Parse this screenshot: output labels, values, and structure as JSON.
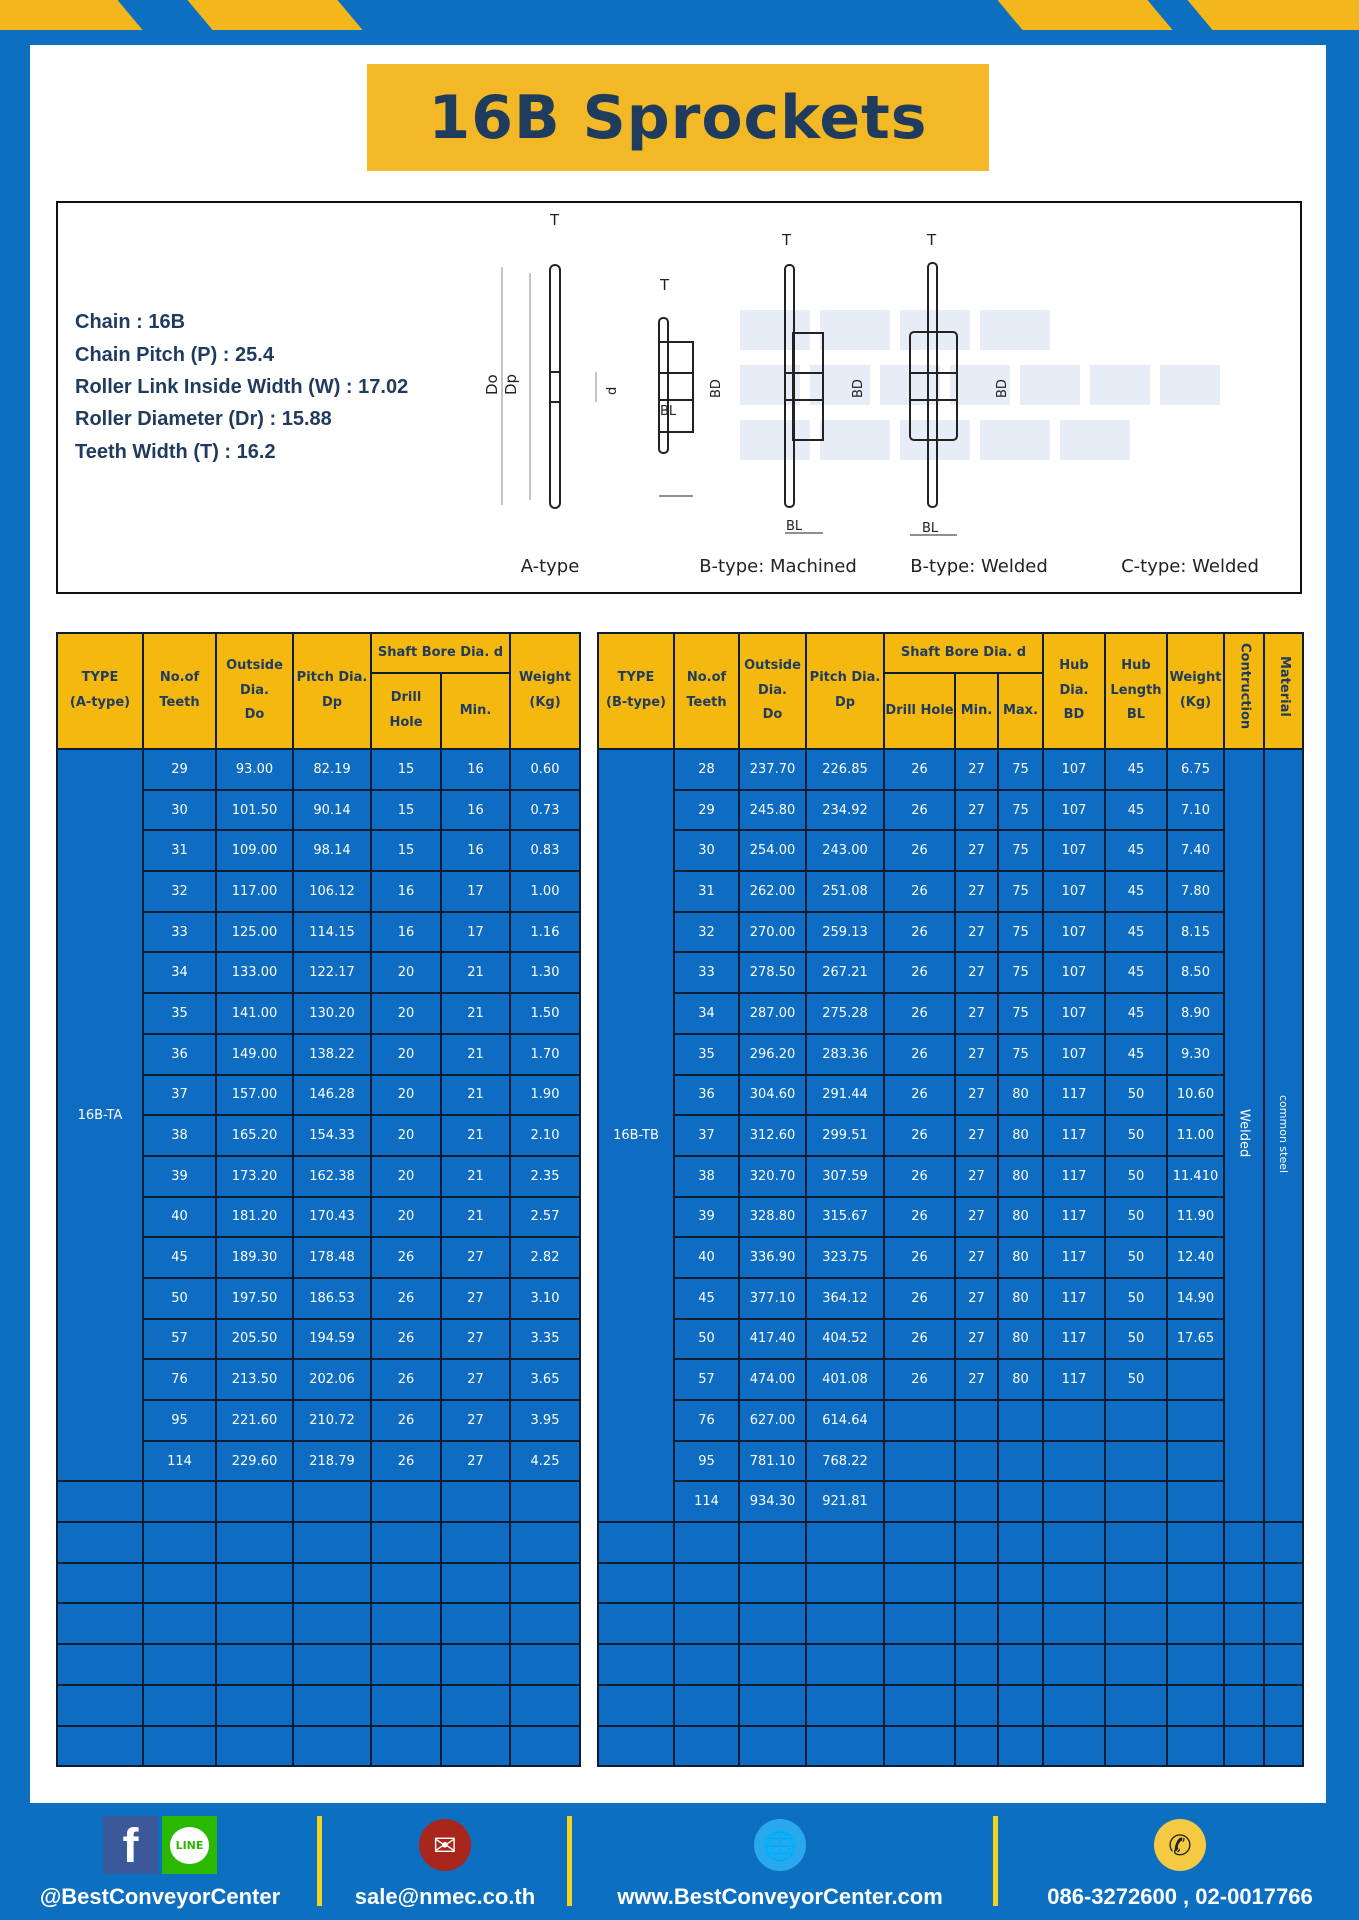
{
  "title": "16B Sprockets",
  "specs": [
    {
      "label": "Chain",
      "value": "16B"
    },
    {
      "label": "Chain Pitch (P)",
      "value": "25.4"
    },
    {
      "label": "Roller Link Inside Width (W)",
      "value": "17.02"
    },
    {
      "label": "Roller Diameter (Dr)",
      "value": "15.88"
    },
    {
      "label": "Teeth Width (T)",
      "value": "16.2"
    }
  ],
  "diagram": {
    "watermark": "BEST CONVEYOR CENTER",
    "labels": {
      "T": "T",
      "Do": "Do",
      "Dp": "Dp",
      "d": "d",
      "BD": "BD",
      "BL": "BL"
    },
    "types": [
      "A-type",
      "B-type: Machined",
      "B-type: Welded",
      "C-type: Welded"
    ]
  },
  "table_a": {
    "headers": {
      "type": "TYPE",
      "type_sub": "(A-type)",
      "teeth": "No.of",
      "teeth_sub": "Teeth",
      "do": "Outside",
      "do_sub": "Dia.",
      "do_sub2": "Do",
      "dp": "Pitch Dia.",
      "dp_sub": "Dp",
      "bore": "Shaft Bore Dia. d",
      "drill": "Drill Hole",
      "min": "Min.",
      "weight": "Weight",
      "weight_sub": "(Kg)"
    },
    "type_value": "16B-TA",
    "rows": [
      [
        "29",
        "93.00",
        "82.19",
        "15",
        "16",
        "0.60"
      ],
      [
        "30",
        "101.50",
        "90.14",
        "15",
        "16",
        "0.73"
      ],
      [
        "31",
        "109.00",
        "98.14",
        "15",
        "16",
        "0.83"
      ],
      [
        "32",
        "117.00",
        "106.12",
        "16",
        "17",
        "1.00"
      ],
      [
        "33",
        "125.00",
        "114.15",
        "16",
        "17",
        "1.16"
      ],
      [
        "34",
        "133.00",
        "122.17",
        "20",
        "21",
        "1.30"
      ],
      [
        "35",
        "141.00",
        "130.20",
        "20",
        "21",
        "1.50"
      ],
      [
        "36",
        "149.00",
        "138.22",
        "20",
        "21",
        "1.70"
      ],
      [
        "37",
        "157.00",
        "146.28",
        "20",
        "21",
        "1.90"
      ],
      [
        "38",
        "165.20",
        "154.33",
        "20",
        "21",
        "2.10"
      ],
      [
        "39",
        "173.20",
        "162.38",
        "20",
        "21",
        "2.35"
      ],
      [
        "40",
        "181.20",
        "170.43",
        "20",
        "21",
        "2.57"
      ],
      [
        "45",
        "189.30",
        "178.48",
        "26",
        "27",
        "2.82"
      ],
      [
        "50",
        "197.50",
        "186.53",
        "26",
        "27",
        "3.10"
      ],
      [
        "57",
        "205.50",
        "194.59",
        "26",
        "27",
        "3.35"
      ],
      [
        "76",
        "213.50",
        "202.06",
        "26",
        "27",
        "3.65"
      ],
      [
        "95",
        "221.60",
        "210.72",
        "26",
        "27",
        "3.95"
      ],
      [
        "114",
        "229.60",
        "218.79",
        "26",
        "27",
        "4.25"
      ]
    ]
  },
  "table_b": {
    "headers": {
      "type": "TYPE",
      "type_sub": "(B-type)",
      "teeth": "No.of",
      "teeth_sub": "Teeth",
      "do": "Outside",
      "do_sub": "Dia.",
      "do_sub2": "Do",
      "dp": "Pitch Dia.",
      "dp_sub": "Dp",
      "bore": "Shaft Bore Dia. d",
      "drill": "Drill Hole",
      "min": "Min.",
      "max": "Max.",
      "bd": "Hub Dia.",
      "bd_sub": "BD",
      "bl": "Hub",
      "bl_sub": "Length",
      "bl_sub2": "BL",
      "weight": "Weight",
      "weight_sub": "(Kg)",
      "construction": "Contruction",
      "material": "Material"
    },
    "type_value": "16B-TB",
    "construction_value": "Welded",
    "material_value": "common steel",
    "rows": [
      [
        "28",
        "237.70",
        "226.85",
        "26",
        "27",
        "75",
        "107",
        "45",
        "6.75"
      ],
      [
        "29",
        "245.80",
        "234.92",
        "26",
        "27",
        "75",
        "107",
        "45",
        "7.10"
      ],
      [
        "30",
        "254.00",
        "243.00",
        "26",
        "27",
        "75",
        "107",
        "45",
        "7.40"
      ],
      [
        "31",
        "262.00",
        "251.08",
        "26",
        "27",
        "75",
        "107",
        "45",
        "7.80"
      ],
      [
        "32",
        "270.00",
        "259.13",
        "26",
        "27",
        "75",
        "107",
        "45",
        "8.15"
      ],
      [
        "33",
        "278.50",
        "267.21",
        "26",
        "27",
        "75",
        "107",
        "45",
        "8.50"
      ],
      [
        "34",
        "287.00",
        "275.28",
        "26",
        "27",
        "75",
        "107",
        "45",
        "8.90"
      ],
      [
        "35",
        "296.20",
        "283.36",
        "26",
        "27",
        "75",
        "107",
        "45",
        "9.30"
      ],
      [
        "36",
        "304.60",
        "291.44",
        "26",
        "27",
        "80",
        "117",
        "50",
        "10.60"
      ],
      [
        "37",
        "312.60",
        "299.51",
        "26",
        "27",
        "80",
        "117",
        "50",
        "11.00"
      ],
      [
        "38",
        "320.70",
        "307.59",
        "26",
        "27",
        "80",
        "117",
        "50",
        "11.410"
      ],
      [
        "39",
        "328.80",
        "315.67",
        "26",
        "27",
        "80",
        "117",
        "50",
        "11.90"
      ],
      [
        "40",
        "336.90",
        "323.75",
        "26",
        "27",
        "80",
        "117",
        "50",
        "12.40"
      ],
      [
        "45",
        "377.10",
        "364.12",
        "26",
        "27",
        "80",
        "117",
        "50",
        "14.90"
      ],
      [
        "50",
        "417.40",
        "404.52",
        "26",
        "27",
        "80",
        "117",
        "50",
        "17.65"
      ],
      [
        "57",
        "474.00",
        "401.08",
        "26",
        "27",
        "80",
        "117",
        "50",
        ""
      ],
      [
        "76",
        "627.00",
        "614.64",
        "",
        "",
        "",
        "",
        "",
        ""
      ],
      [
        "95",
        "781.10",
        "768.22",
        "",
        "",
        "",
        "",
        "",
        ""
      ],
      [
        "114",
        "934.30",
        "921.81",
        "",
        "",
        "",
        "",
        "",
        ""
      ]
    ]
  },
  "footer": {
    "social": "@BestConveyorCenter",
    "line_badge": "LINE",
    "email": "sale@nmec.co.th",
    "website": "www.BestConveyorCenter.com",
    "phone": "086-3272600 , 02-0017766"
  },
  "colors": {
    "background": "#0d6fbf",
    "accent": "#f2b825",
    "cell": "#0e6dc2",
    "title_text": "#1f3b5e"
  }
}
